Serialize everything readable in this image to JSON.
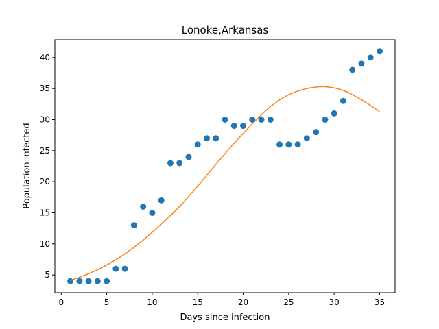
{
  "chart_data": {
    "type": "scatter",
    "title": "Lonoke,Arkansas",
    "xlabel": "Days since infection",
    "ylabel": "Population infected",
    "xlim": [
      -0.7,
      36.7
    ],
    "ylim": [
      2.15,
      42.85
    ],
    "xticks": [
      0,
      5,
      10,
      15,
      20,
      25,
      30,
      35
    ],
    "yticks": [
      5,
      10,
      15,
      20,
      25,
      30,
      35,
      40
    ],
    "grid": false,
    "colors": {
      "points": "#1f77b4",
      "fit": "#ff7f0e"
    },
    "series": [
      {
        "type": "scatter",
        "x": [
          1,
          2,
          3,
          4,
          5,
          6,
          7,
          8,
          9,
          10,
          11,
          12,
          13,
          14,
          15,
          16,
          17,
          18,
          19,
          20,
          21,
          22,
          23,
          24,
          25,
          26,
          27,
          28,
          29,
          30,
          31,
          32,
          33,
          34,
          35
        ],
        "y": [
          4,
          4,
          4,
          4,
          4,
          6,
          6,
          13,
          16,
          15,
          17,
          23,
          23,
          24,
          26,
          27,
          27,
          30,
          29,
          29,
          30,
          30,
          30,
          26,
          26,
          26,
          27,
          28,
          30,
          31,
          33,
          38,
          39,
          40,
          41
        ]
      },
      {
        "type": "line",
        "x": [
          1,
          3,
          5,
          7,
          9,
          11,
          13,
          15,
          17,
          19,
          21,
          23,
          25,
          27,
          29,
          31,
          33,
          35
        ],
        "y": [
          4.1,
          5.2,
          6.6,
          8.4,
          10.6,
          13.2,
          16.0,
          19.3,
          22.8,
          26.2,
          29.3,
          32.1,
          34.0,
          35.0,
          35.3,
          34.7,
          33.2,
          31.3
        ]
      }
    ]
  }
}
